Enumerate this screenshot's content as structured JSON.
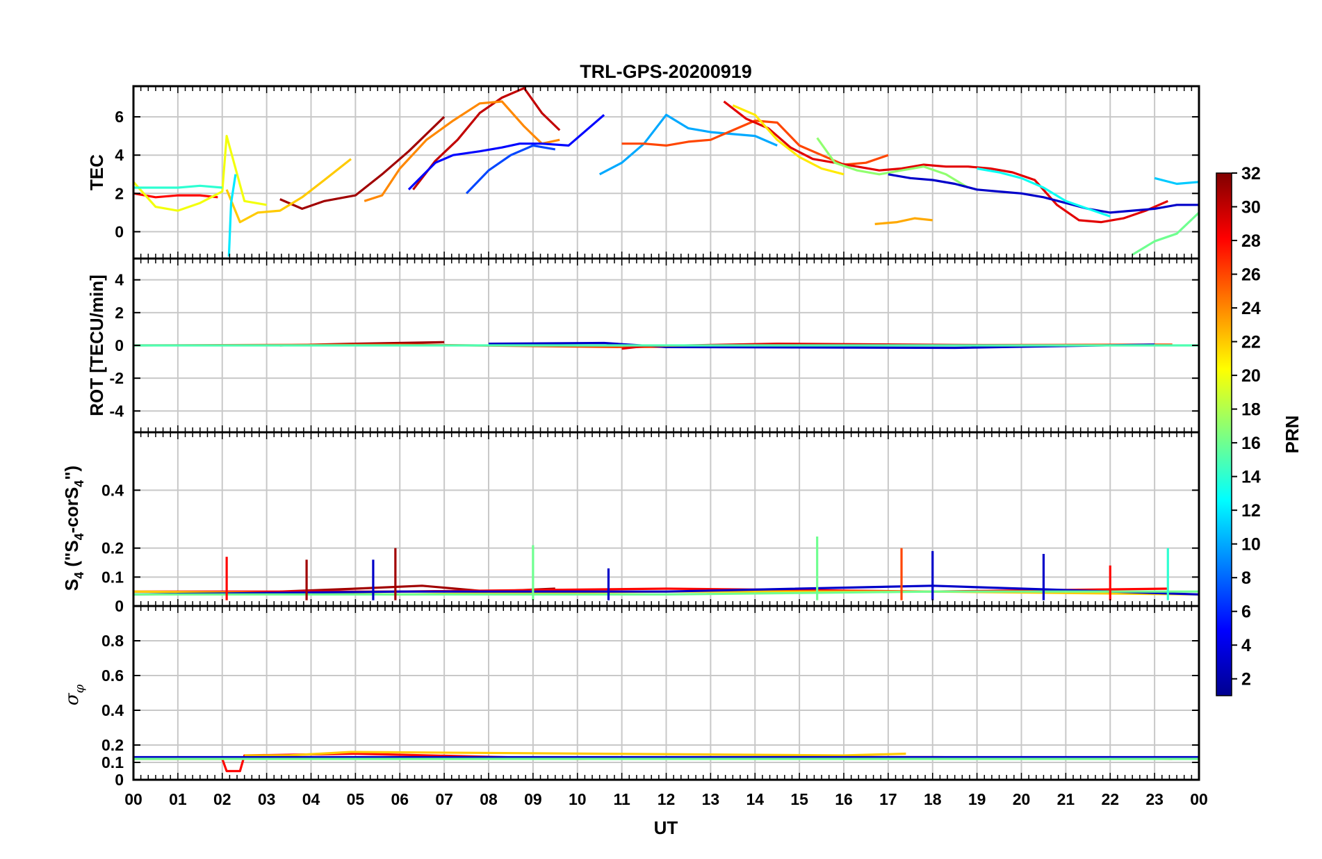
{
  "title": "TRL-GPS-20200919",
  "xlabel": "UT",
  "x_ticks": [
    "00",
    "01",
    "02",
    "03",
    "04",
    "05",
    "06",
    "07",
    "08",
    "09",
    "10",
    "11",
    "12",
    "13",
    "14",
    "15",
    "16",
    "17",
    "18",
    "19",
    "20",
    "21",
    "22",
    "23",
    "00"
  ],
  "colorbar": {
    "label": "PRN",
    "range": [
      1,
      32
    ],
    "tick_labels": [
      "2",
      "4",
      "6",
      "8",
      "10",
      "12",
      "14",
      "16",
      "18",
      "20",
      "22",
      "24",
      "26",
      "28",
      "30",
      "32"
    ]
  },
  "chart_data": [
    {
      "type": "line",
      "panel": "TEC",
      "ylabel": "TEC",
      "ylim": [
        -1.4,
        7.6
      ],
      "yticks": [
        0,
        2,
        4,
        6
      ],
      "ytick_labels": [
        "0",
        "2",
        "4",
        "6"
      ],
      "xlim": [
        0,
        24
      ],
      "series": [
        {
          "name": "PRN 31",
          "prn": 31,
          "x": [
            3.3,
            3.8,
            4.3,
            5.0,
            5.6,
            6.2,
            7.0
          ],
          "y": [
            1.7,
            1.2,
            1.6,
            1.9,
            3.0,
            4.2,
            6.0
          ]
        },
        {
          "name": "PRN 30",
          "prn": 30,
          "x": [
            6.3,
            6.8,
            7.3,
            7.8,
            8.3,
            8.8,
            9.2,
            9.6
          ],
          "y": [
            2.2,
            3.7,
            4.8,
            6.2,
            7.0,
            7.5,
            6.2,
            5.3
          ]
        },
        {
          "name": "PRN 24",
          "prn": 24,
          "x": [
            5.2,
            5.6,
            6.0,
            6.6,
            7.2,
            7.8,
            8.3,
            8.8,
            9.2,
            9.6
          ],
          "y": [
            1.6,
            1.9,
            3.3,
            4.8,
            5.8,
            6.7,
            6.8,
            5.5,
            4.6,
            4.8
          ]
        },
        {
          "name": "PRN 28",
          "prn": 28,
          "x": [
            0.0,
            0.5,
            1.0,
            1.5,
            1.9
          ],
          "y": [
            2.0,
            1.8,
            1.9,
            1.9,
            1.8
          ]
        },
        {
          "name": "PRN 22",
          "prn": 22,
          "x": [
            2.1,
            2.4,
            2.8,
            3.3,
            3.8,
            4.3,
            4.9
          ],
          "y": [
            2.2,
            0.5,
            1.0,
            1.1,
            1.8,
            2.7,
            3.8
          ]
        },
        {
          "name": "PRN 20",
          "prn": 20,
          "x": [
            0.0,
            0.5,
            1.0,
            1.5,
            2.0,
            2.1,
            2.5,
            3.0
          ],
          "y": [
            2.6,
            1.3,
            1.1,
            1.5,
            2.1,
            5.0,
            1.6,
            1.4
          ]
        },
        {
          "name": "PRN 14",
          "prn": 14,
          "x": [
            0.0,
            0.5,
            1.0,
            1.5,
            2.0
          ],
          "y": [
            2.3,
            2.3,
            2.3,
            2.4,
            2.3
          ]
        },
        {
          "name": "PRN 12",
          "prn": 12,
          "x": [
            2.15,
            2.2,
            2.3
          ],
          "y": [
            -1.3,
            1.5,
            3.0
          ]
        },
        {
          "name": "PRN 5",
          "prn": 5,
          "x": [
            6.2,
            6.8,
            7.2,
            7.8,
            8.3,
            8.7,
            9.2,
            9.8,
            10.6
          ],
          "y": [
            2.2,
            3.6,
            4.0,
            4.2,
            4.4,
            4.6,
            4.6,
            4.5,
            6.1
          ]
        },
        {
          "name": "PRN 7",
          "prn": 7,
          "x": [
            7.5,
            8.0,
            8.5,
            9.0,
            9.5
          ],
          "y": [
            2.0,
            3.2,
            4.0,
            4.5,
            4.3
          ]
        },
        {
          "name": "PRN 10",
          "prn": 10,
          "x": [
            10.5,
            11.0,
            11.5,
            12.0,
            12.5,
            13.0,
            13.5,
            14.0,
            14.5
          ],
          "y": [
            3.0,
            3.6,
            4.6,
            6.1,
            5.4,
            5.2,
            5.1,
            5.0,
            4.5
          ]
        },
        {
          "name": "PRN 26",
          "prn": 26,
          "x": [
            11.0,
            11.5,
            12.0,
            12.5,
            13.0,
            13.5,
            14.0,
            14.5,
            15.0,
            15.5,
            16.0,
            16.5,
            17.0
          ],
          "y": [
            4.6,
            4.6,
            4.5,
            4.7,
            4.8,
            5.3,
            5.8,
            5.7,
            4.5,
            4.0,
            3.5,
            3.6,
            4.0
          ]
        },
        {
          "name": "PRN 29",
          "prn": 29,
          "x": [
            13.3,
            13.8,
            14.3,
            14.8,
            15.3,
            15.8,
            16.3,
            16.8,
            17.3,
            17.8,
            18.3,
            18.8,
            19.3,
            19.8,
            20.3,
            20.8,
            21.3,
            21.8,
            22.3,
            22.8,
            23.3
          ],
          "y": [
            6.8,
            5.9,
            5.4,
            4.4,
            3.8,
            3.6,
            3.4,
            3.2,
            3.3,
            3.5,
            3.4,
            3.4,
            3.3,
            3.1,
            2.7,
            1.4,
            0.6,
            0.5,
            0.7,
            1.1,
            1.6
          ]
        },
        {
          "name": "PRN 21",
          "prn": 21,
          "x": [
            13.5,
            14.0,
            14.5,
            15.0,
            15.5,
            16.0
          ],
          "y": [
            6.6,
            6.1,
            4.8,
            3.9,
            3.3,
            3.0
          ]
        },
        {
          "name": "PRN 17",
          "prn": 17,
          "x": [
            15.4,
            15.8,
            16.3,
            16.8,
            17.3,
            17.8,
            18.3,
            18.8
          ],
          "y": [
            4.9,
            3.6,
            3.2,
            3.0,
            3.2,
            3.4,
            3.0,
            2.3
          ]
        },
        {
          "name": "PRN 3",
          "prn": 3,
          "x": [
            17.0,
            17.5,
            18.0,
            18.5,
            19.0,
            19.5,
            20.0,
            20.5,
            21.0,
            21.5,
            22.0,
            22.5,
            23.0,
            23.5,
            24.0
          ],
          "y": [
            3.0,
            2.8,
            2.7,
            2.5,
            2.2,
            2.1,
            2.0,
            1.8,
            1.5,
            1.2,
            1.0,
            1.1,
            1.2,
            1.4,
            1.4
          ]
        },
        {
          "name": "PRN 23",
          "prn": 23,
          "x": [
            16.7,
            17.2,
            17.6,
            18.0
          ],
          "y": [
            0.4,
            0.5,
            0.7,
            0.6
          ]
        },
        {
          "name": "PRN 13",
          "prn": 13,
          "x": [
            19.0,
            19.5,
            20.0,
            20.5,
            21.0,
            21.5,
            22.0
          ],
          "y": [
            3.3,
            3.1,
            2.8,
            2.3,
            1.6,
            1.2,
            0.8
          ]
        },
        {
          "name": "PRN 16",
          "prn": 16,
          "x": [
            22.5,
            23.0,
            23.5,
            24.0
          ],
          "y": [
            -1.2,
            -0.5,
            -0.1,
            1.0
          ]
        },
        {
          "name": "PRN 11",
          "prn": 11,
          "x": [
            23.0,
            23.5,
            24.0
          ],
          "y": [
            2.8,
            2.5,
            2.6
          ]
        }
      ]
    },
    {
      "type": "line",
      "panel": "ROT",
      "ylabel": "ROT [TECU/min]",
      "ylim": [
        -5.3,
        5.3
      ],
      "yticks": [
        -4,
        -2,
        0,
        2,
        4
      ],
      "ytick_labels": [
        "-4",
        "-2",
        "0",
        "2",
        "4"
      ],
      "xlim": [
        0,
        24
      ],
      "series": [
        {
          "name": "PRN 31",
          "prn": 31,
          "x": [
            3.3,
            5.0,
            7.0
          ],
          "y": [
            0.0,
            0.1,
            0.2
          ]
        },
        {
          "name": "PRN 26",
          "prn": 26,
          "x": [
            0.0,
            6.0,
            11.0,
            16.0,
            23.4
          ],
          "y": [
            0.0,
            0.05,
            -0.1,
            0.0,
            0.05
          ]
        },
        {
          "name": "PRN 3",
          "prn": 3,
          "x": [
            8.0,
            10.6,
            12.0,
            18.5,
            23.0
          ],
          "y": [
            0.1,
            0.15,
            -0.1,
            -0.15,
            0.05
          ]
        },
        {
          "name": "PRN 29",
          "prn": 29,
          "x": [
            11.0,
            11.5,
            14.5,
            20.0
          ],
          "y": [
            -0.2,
            -0.05,
            0.1,
            0.0
          ]
        },
        {
          "name": "PRN 15",
          "prn": 15,
          "x": [
            0.0,
            12.0,
            24.0
          ],
          "y": [
            0.0,
            0.0,
            0.0
          ]
        }
      ]
    },
    {
      "type": "line",
      "panel": "S4",
      "ylabel": "S4 (\"S4-corS4\")",
      "ylabel_parts": {
        "s": "S",
        "sub": "4",
        "mid": " (\"S",
        "mid2": "-corS",
        "end": "\")"
      },
      "ylim": [
        0,
        0.6
      ],
      "yticks": [
        0,
        0.1,
        0.2,
        0.4
      ],
      "ytick_labels": [
        "0",
        "0.1",
        "0.2",
        "0.4"
      ],
      "xlim": [
        0,
        24
      ],
      "spikes": [
        {
          "x": 2.1,
          "y": 0.17,
          "prn": 28
        },
        {
          "x": 3.9,
          "y": 0.16,
          "prn": 31
        },
        {
          "x": 5.4,
          "y": 0.16,
          "prn": 3
        },
        {
          "x": 5.9,
          "y": 0.2,
          "prn": 31
        },
        {
          "x": 9.0,
          "y": 0.21,
          "prn": 16
        },
        {
          "x": 10.7,
          "y": 0.13,
          "prn": 3
        },
        {
          "x": 15.4,
          "y": 0.24,
          "prn": 16
        },
        {
          "x": 17.3,
          "y": 0.2,
          "prn": 26
        },
        {
          "x": 18.0,
          "y": 0.19,
          "prn": 3
        },
        {
          "x": 20.5,
          "y": 0.18,
          "prn": 3
        },
        {
          "x": 22.0,
          "y": 0.14,
          "prn": 28
        },
        {
          "x": 23.3,
          "y": 0.2,
          "prn": 14
        }
      ],
      "series": [
        {
          "name": "PRN 31",
          "prn": 31,
          "x": [
            3.3,
            5.0,
            6.5,
            8.0,
            9.5
          ],
          "y": [
            0.05,
            0.06,
            0.07,
            0.05,
            0.06
          ]
        },
        {
          "name": "PRN 28",
          "prn": 28,
          "x": [
            0.0,
            6.0,
            12.0,
            18.0,
            23.3
          ],
          "y": [
            0.05,
            0.05,
            0.06,
            0.05,
            0.06
          ]
        },
        {
          "name": "PRN 22",
          "prn": 22,
          "x": [
            0.0,
            6.0,
            12.0,
            18.0,
            24.0
          ],
          "y": [
            0.05,
            0.04,
            0.05,
            0.05,
            0.04
          ]
        },
        {
          "name": "PRN 3",
          "prn": 3,
          "x": [
            0.0,
            6.0,
            12.0,
            18.0,
            24.0
          ],
          "y": [
            0.04,
            0.05,
            0.05,
            0.07,
            0.04
          ]
        },
        {
          "name": "PRN 16",
          "prn": 16,
          "x": [
            0.0,
            6.0,
            12.0,
            18.0,
            24.0
          ],
          "y": [
            0.04,
            0.04,
            0.04,
            0.05,
            0.05
          ]
        }
      ]
    },
    {
      "type": "line",
      "panel": "sigma_phi",
      "ylabel": "σφ",
      "ylabel_parts": {
        "sigma": "σ",
        "phi": "φ"
      },
      "ylim": [
        0,
        1
      ],
      "yticks": [
        0,
        0.1,
        0.2,
        0.4,
        0.6,
        0.8
      ],
      "ytick_labels": [
        "0",
        "0.1",
        "0.2",
        "0.4",
        "0.6",
        "0.8"
      ],
      "xlim": [
        0,
        24
      ],
      "series": [
        {
          "name": "PRN 28",
          "prn": 28,
          "x": [
            0.0,
            2.0,
            2.1,
            2.4,
            2.5,
            5.0,
            10.0,
            16.0,
            18.0,
            23.4
          ],
          "y": [
            0.12,
            0.12,
            0.05,
            0.05,
            0.14,
            0.15,
            0.12,
            0.13,
            0.13,
            0.12
          ]
        },
        {
          "name": "PRN 22",
          "prn": 22,
          "x": [
            2.5,
            3.5,
            4.9,
            16.0,
            17.4
          ],
          "y": [
            0.14,
            0.14,
            0.16,
            0.14,
            0.15
          ]
        },
        {
          "name": "PRN 3",
          "prn": 3,
          "x": [
            0.0,
            8.0,
            16.0,
            24.0
          ],
          "y": [
            0.13,
            0.13,
            0.13,
            0.13
          ]
        },
        {
          "name": "PRN 16",
          "prn": 16,
          "x": [
            0.0,
            12.0,
            24.0
          ],
          "y": [
            0.12,
            0.12,
            0.12
          ]
        }
      ]
    }
  ]
}
